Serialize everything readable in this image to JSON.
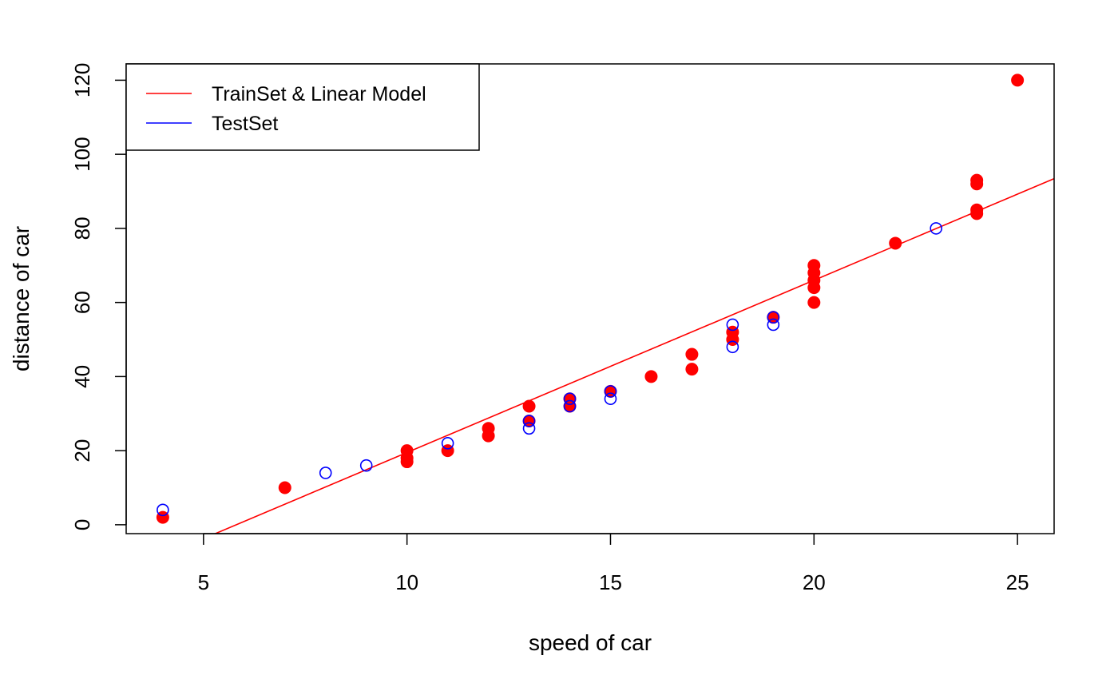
{
  "chart_data": {
    "type": "scatter",
    "title": "",
    "xlabel": "speed of car",
    "ylabel": "distance of car",
    "xlim": [
      3.1,
      25.9
    ],
    "ylim": [
      -2.4,
      124.4
    ],
    "x_ticks": [
      5,
      10,
      15,
      20,
      25
    ],
    "y_ticks": [
      0,
      20,
      40,
      60,
      80,
      100,
      120
    ],
    "grid": false,
    "legend_position": "top-left",
    "legend": [
      {
        "label": "TrainSet & Linear Model",
        "color": "#ff0000"
      },
      {
        "label": "TestSet",
        "color": "#0000ff"
      }
    ],
    "series": [
      {
        "name": "TrainSet & Linear Model",
        "color": "#ff0000",
        "marker": "filled-circle",
        "points": [
          [
            4,
            2
          ],
          [
            7,
            10
          ],
          [
            10,
            17
          ],
          [
            10,
            18
          ],
          [
            10,
            20
          ],
          [
            11,
            20
          ],
          [
            12,
            24
          ],
          [
            12,
            26
          ],
          [
            13,
            28
          ],
          [
            13,
            32
          ],
          [
            14,
            32
          ],
          [
            14,
            34
          ],
          [
            15,
            36
          ],
          [
            16,
            40
          ],
          [
            17,
            42
          ],
          [
            17,
            46
          ],
          [
            18,
            50
          ],
          [
            18,
            52
          ],
          [
            19,
            56
          ],
          [
            20,
            60
          ],
          [
            20,
            64
          ],
          [
            20,
            66
          ],
          [
            20,
            68
          ],
          [
            20,
            70
          ],
          [
            22,
            76
          ],
          [
            24,
            84
          ],
          [
            24,
            85
          ],
          [
            24,
            92
          ],
          [
            24,
            93
          ],
          [
            25,
            120
          ]
        ]
      },
      {
        "name": "TestSet",
        "color": "#0000ff",
        "marker": "open-circle",
        "points": [
          [
            4,
            4
          ],
          [
            8,
            14
          ],
          [
            9,
            16
          ],
          [
            11,
            22
          ],
          [
            13,
            26
          ],
          [
            13,
            28
          ],
          [
            14,
            32
          ],
          [
            14,
            34
          ],
          [
            15,
            34
          ],
          [
            15,
            36
          ],
          [
            18,
            48
          ],
          [
            18,
            54
          ],
          [
            19,
            54
          ],
          [
            19,
            56
          ],
          [
            23,
            80
          ]
        ]
      }
    ],
    "fit_line": {
      "name": "Linear Model",
      "color": "#ff0000",
      "intercept": -27,
      "slope": 4.65
    }
  }
}
